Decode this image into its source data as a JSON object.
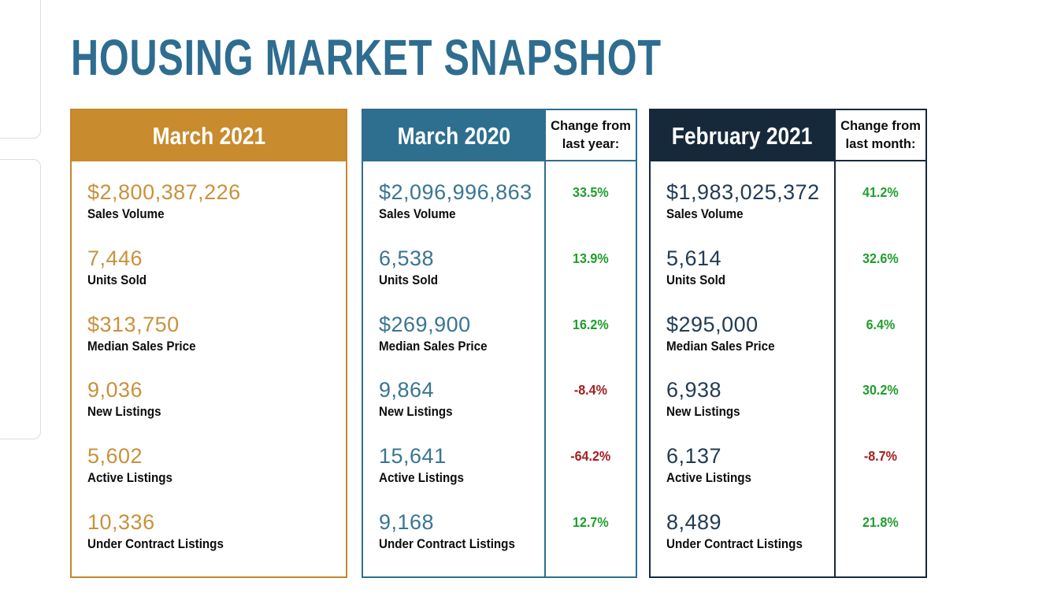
{
  "page": {
    "title": "HOUSING MARKET SNAPSHOT"
  },
  "colors": {
    "title_teal": "#2e6d90",
    "gold_header": "#c88b2e",
    "gold_value": "#c9913c",
    "teal_header": "#2e6e8e",
    "teal_value": "#3a7593",
    "navy_header": "#16293a",
    "navy_value": "#223c55",
    "positive_green": "#1f9e2c",
    "negative_red": "#a32024",
    "label_black": "#0d0d0d",
    "stub_border_gray": "#dcdcdc",
    "corner_square_maroon": "#6e1c1c"
  },
  "cards": [
    {
      "header": "March 2021",
      "metrics": [
        {
          "value": "$2,800,387,226",
          "label": "Sales Volume"
        },
        {
          "value": "7,446",
          "label": "Units Sold"
        },
        {
          "value": "$313,750",
          "label": "Median Sales Price"
        },
        {
          "value": "9,036",
          "label": "New Listings"
        },
        {
          "value": "5,602",
          "label": "Active Listings"
        },
        {
          "value": "10,336",
          "label": "Under Contract Listings"
        }
      ]
    },
    {
      "header": "March 2020",
      "change_header": "Change from last year:",
      "metrics": [
        {
          "value": "$2,096,996,863",
          "label": "Sales Volume",
          "change": "33.5%",
          "direction": "up"
        },
        {
          "value": "6,538",
          "label": "Units Sold",
          "change": "13.9%",
          "direction": "up"
        },
        {
          "value": "$269,900",
          "label": "Median Sales Price",
          "change": "16.2%",
          "direction": "up"
        },
        {
          "value": "9,864",
          "label": "New Listings",
          "change": "-8.4%",
          "direction": "down"
        },
        {
          "value": "15,641",
          "label": "Active Listings",
          "change": "-64.2%",
          "direction": "down"
        },
        {
          "value": "9,168",
          "label": "Under Contract Listings",
          "change": "12.7%",
          "direction": "up"
        }
      ]
    },
    {
      "header": "February 2021",
      "change_header": "Change from last month:",
      "metrics": [
        {
          "value": "$1,983,025,372",
          "label": "Sales Volume",
          "change": "41.2%",
          "direction": "up"
        },
        {
          "value": "5,614",
          "label": "Units Sold",
          "change": "32.6%",
          "direction": "up"
        },
        {
          "value": "$295,000",
          "label": "Median Sales Price",
          "change": "6.4%",
          "direction": "up"
        },
        {
          "value": "6,938",
          "label": "New Listings",
          "change": "30.2%",
          "direction": "up"
        },
        {
          "value": "6,137",
          "label": "Active Listings",
          "change": "-8.7%",
          "direction": "down"
        },
        {
          "value": "8,489",
          "label": "Under Contract Listings",
          "change": "21.8%",
          "direction": "up"
        }
      ]
    }
  ]
}
